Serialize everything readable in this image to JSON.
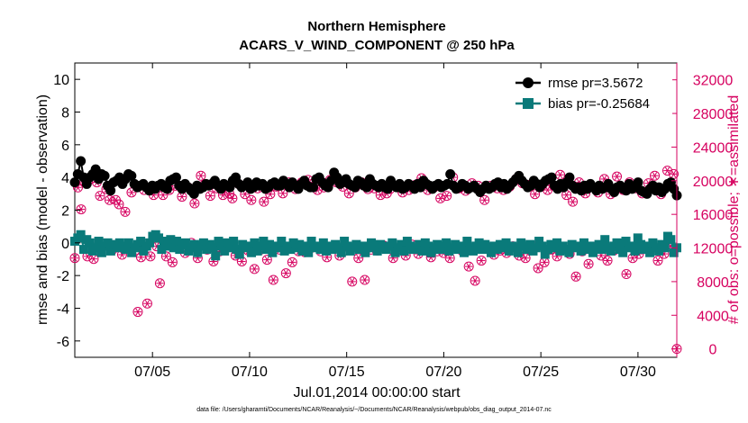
{
  "chart_data": {
    "type": "line",
    "title": "Northern Hemisphere",
    "subtitle": "ACARS_V_WIND_COMPONENT @ 250 hPa",
    "xlabel": "Jul.01,2014 00:00:00 start",
    "ylabel": "rmse and bias (model - observation)",
    "ylabel_right": "# of obs: o=possible; ∗=assimilated",
    "footnote": "data file: /Users/gharamti/Documents/NCAR/Reanalysis/~/Documents/NCAR/Reanalysis/webpub/obs_diag_output_2014-07.nc",
    "xlim": [
      1,
      32
    ],
    "ylim": [
      -7,
      11
    ],
    "ylim_right": [
      -1000,
      34000
    ],
    "xticks": [
      5,
      10,
      15,
      20,
      25,
      30
    ],
    "xtick_labels": [
      "07/05",
      "07/10",
      "07/15",
      "07/20",
      "07/25",
      "07/30"
    ],
    "yticks": [
      -6,
      -4,
      -2,
      0,
      2,
      4,
      6,
      8,
      10
    ],
    "yticks_right": [
      0,
      4000,
      8000,
      12000,
      16000,
      20000,
      24000,
      28000,
      32000
    ],
    "legend_position": "top-right",
    "colors": {
      "rmse": "#000000",
      "bias": "#0a7a7a",
      "obs": "#d6005f",
      "zero_line": "#999999"
    },
    "series": [
      {
        "name": "rmse pr=3.5672",
        "marker": "circle",
        "values": [
          3.7,
          4.2,
          5.0,
          4.0,
          3.6,
          4.0,
          4.2,
          4.5,
          3.9,
          4.2,
          4.1,
          3.5,
          3.2,
          3.7,
          3.8,
          4.0,
          3.6,
          3.9,
          4.2,
          4.1,
          3.6,
          3.4,
          3.5,
          3.6,
          3.4,
          3.2,
          3.5,
          3.3,
          3.5,
          3.6,
          3.4,
          3.3,
          3.8,
          3.9,
          4.0,
          3.5,
          3.3,
          3.6,
          3.4,
          3.2,
          3.0,
          3.5,
          3.3,
          3.4,
          3.6,
          3.5,
          3.6,
          3.8,
          3.5,
          3.3,
          3.6,
          3.5,
          3.4,
          3.8,
          4.0,
          3.6,
          3.4,
          3.5,
          3.7,
          3.3,
          3.4,
          3.7,
          3.5,
          3.6,
          3.3,
          3.4,
          3.6,
          3.7,
          3.5,
          3.5,
          3.8,
          3.6,
          3.4,
          3.7,
          3.5,
          3.3,
          3.6,
          3.8,
          3.5,
          3.4,
          3.4,
          3.9,
          4.0,
          3.7,
          3.5,
          3.4,
          3.8,
          4.3,
          4.0,
          3.6,
          3.7,
          3.9,
          3.6,
          3.5,
          3.4,
          3.8,
          3.7,
          3.5,
          3.4,
          3.9,
          3.6,
          3.5,
          3.4,
          3.6,
          3.4,
          3.3,
          3.8,
          3.5,
          3.4,
          3.6,
          3.3,
          3.4,
          3.6,
          3.5,
          3.3,
          3.6,
          3.4,
          3.8,
          3.6,
          3.5,
          3.3,
          3.5,
          3.6,
          3.4,
          3.5,
          3.6,
          4.2,
          3.5,
          3.3,
          3.4,
          3.6,
          3.5,
          3.3,
          3.4,
          3.5,
          3.3,
          3.1,
          3.3,
          3.5,
          3.3,
          3.4,
          3.6,
          3.7,
          3.4,
          3.6,
          3.3,
          3.5,
          3.7,
          3.9,
          4.1,
          3.8,
          3.6,
          3.4,
          3.5,
          3.8,
          3.6,
          3.4,
          3.6,
          3.8,
          3.9,
          4.0,
          3.5,
          3.3,
          3.6,
          3.4,
          3.7,
          4.0,
          3.5,
          3.3,
          3.4,
          3.2,
          3.5,
          3.3,
          3.6,
          3.4,
          3.2,
          3.5,
          3.3,
          3.4,
          3.6,
          3.3,
          3.1,
          3.4,
          3.5,
          3.3,
          3.2,
          3.6,
          3.3,
          3.4,
          3.7,
          3.2,
          3.1,
          3.0,
          3.3,
          3.5,
          3.2,
          3.4,
          3.1,
          3.3,
          3.6,
          3.7,
          3.3,
          2.9
        ]
      },
      {
        "name": "bias pr=-0.25684",
        "marker": "square",
        "values": [
          0.1,
          0.3,
          0.5,
          -0.4,
          0.2,
          0.0,
          -0.5,
          -0.3,
          0.1,
          -0.6,
          -0.2,
          0.0,
          -0.5,
          -0.1,
          -0.3,
          0.0,
          -0.2,
          -0.4,
          0.0,
          -0.6,
          -0.3,
          -0.1,
          0.1,
          -0.5,
          -0.2,
          0.0,
          0.4,
          0.5,
          0.3,
          -0.4,
          0.1,
          -0.2,
          0.2,
          -0.3,
          0.1,
          -0.4,
          -0.1,
          0.0,
          -0.5,
          -0.3,
          -0.1,
          -0.6,
          -0.2,
          0.0,
          -0.4,
          -0.1,
          -0.3,
          -0.8,
          0.1,
          -0.2,
          -0.5,
          0.0,
          -0.3,
          0.1,
          -0.4,
          -0.7,
          -0.1,
          -0.3,
          -0.2,
          -0.6,
          0.0,
          -0.5,
          -0.2,
          0.1,
          -0.4,
          -0.1,
          -0.6,
          -0.2,
          -0.3,
          0.1,
          -0.5,
          -0.2,
          -0.4,
          0.0,
          -0.3,
          -0.1,
          -0.5,
          -0.2,
          -0.6,
          0.1,
          -0.3,
          -0.2,
          -0.4,
          0.0,
          -0.5,
          -0.2,
          -0.4,
          -0.1,
          -0.3,
          -0.6,
          0.1,
          -0.2,
          -0.5,
          -0.3,
          -0.1,
          -0.4,
          -0.2,
          -0.6,
          -0.3,
          0.0,
          -0.2,
          -0.5,
          -0.1,
          -0.3,
          -0.4,
          -0.2,
          0.0,
          -0.6,
          -0.3,
          -0.1,
          -0.5,
          0.1,
          -0.2,
          -0.4,
          -0.3,
          -0.1,
          -0.5,
          0.0,
          -0.2,
          -0.6,
          -0.3,
          -0.1,
          -0.4,
          -0.2,
          0.0,
          -0.5,
          -0.3,
          -0.1,
          -0.4,
          -0.2,
          -0.6,
          0.1,
          -0.3,
          -0.5,
          -0.2,
          0.0,
          -0.4,
          -0.1,
          -0.3,
          -0.6,
          -0.2,
          -0.4,
          -0.1,
          -0.3,
          0.0,
          -0.5,
          -0.2,
          -0.3,
          -0.6,
          0.0,
          -0.2,
          -0.4,
          -0.1,
          -0.5,
          -0.3,
          0.1,
          -0.2,
          -0.7,
          -0.4,
          -0.1,
          -0.3,
          0.0,
          -0.5,
          -0.2,
          -0.4,
          -0.6,
          -0.1,
          -0.3,
          -0.2,
          -0.5,
          0.0,
          -0.4,
          -0.2,
          -0.6,
          -0.3,
          -0.1,
          -0.4,
          0.2,
          -0.3,
          -0.5,
          -0.2,
          0.0,
          -0.4,
          -0.6,
          0.1,
          -0.3,
          -0.2,
          -0.5,
          0.3,
          -0.1,
          -0.4,
          -0.2,
          -0.6,
          0.0,
          -0.3,
          -0.5,
          -0.1,
          -0.3,
          0.4,
          0.2,
          -0.6,
          -0.3
        ]
      }
    ],
    "obs_possible": [
      10800,
      19200,
      16600,
      19800,
      11000,
      20200,
      10700,
      19800,
      18200,
      12500,
      19000,
      17700,
      11800,
      17700,
      17200,
      11200,
      16300,
      12200,
      18600,
      11600,
      4400,
      10900,
      18900,
      5400,
      11000,
      18300,
      12200,
      7800,
      18300,
      11000,
      18900,
      10300,
      19400,
      12300,
      18100,
      11400,
      19200,
      12600,
      17300,
      10800,
      20600,
      19500,
      11800,
      18200,
      10400,
      19100,
      11600,
      18300,
      12100,
      18500,
      17900,
      11100,
      19600,
      10400,
      18400,
      11700,
      17700,
      9500,
      19100,
      11800,
      17500,
      10600,
      18400,
      8200,
      19300,
      11800,
      18500,
      9000,
      19800,
      10300,
      19000,
      11600,
      19800,
      11500,
      20100,
      12000,
      19800,
      18900,
      11600,
      19200,
      10900,
      20100,
      12000,
      19800,
      11100,
      19300,
      11700,
      18500,
      8000,
      19200,
      10800,
      19800,
      8200,
      19000,
      11800,
      19100,
      11700,
      18300,
      12300,
      18500,
      19000,
      10800,
      19300,
      11900,
      18600,
      11100,
      18900,
      12400,
      19500,
      11300,
      20300,
      12200,
      18900,
      10900,
      19200,
      11600,
      17900,
      11400,
      18200,
      10800,
      20400,
      12100,
      19100,
      11600,
      18800,
      9800,
      19700,
      8100,
      19400,
      10500,
      17700,
      12100,
      19400,
      11200,
      19100,
      11700,
      18900,
      11400,
      19300,
      12200,
      20200,
      11100,
      19700,
      10800,
      19500,
      12300,
      18400,
      9600,
      19300,
      10300,
      18900,
      11800,
      19400,
      11000,
      20700,
      12100,
      18300,
      11300,
      17500,
      8600,
      19800,
      11600,
      18500,
      10100,
      19300,
      12100,
      18600,
      11100,
      20200,
      10500,
      18400,
      11700,
      20500,
      12200,
      18900,
      8900,
      19800,
      10800,
      19100,
      11300,
      18500,
      11900,
      19700,
      12100,
      20600,
      10500,
      18400,
      11300,
      21200,
      12200,
      20800,
      0
    ]
  }
}
